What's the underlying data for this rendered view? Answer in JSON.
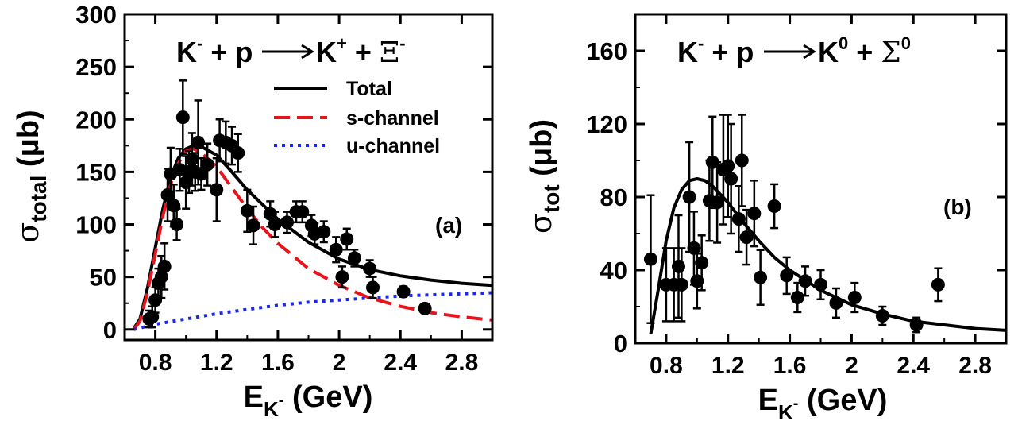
{
  "chart_data": [
    {
      "id": "a",
      "type": "scatter",
      "panel_label": "(a)",
      "reaction": {
        "l1": "K",
        "s1": "-",
        "l2": " + p ",
        "l3": "K",
        "s3": "+",
        "l4": " + ",
        "l5": "Ξ",
        "s5": "-"
      },
      "ylabel": {
        "main": "σ",
        "sub": "total",
        "unit": " (μb)"
      },
      "xlabel": {
        "main": "E",
        "sub": "K",
        "subsup": "-",
        "unit": " (GeV)"
      },
      "xlim": [
        0.6,
        3.0
      ],
      "ylim": [
        -10,
        300
      ],
      "xticks": [
        0.8,
        1.2,
        1.6,
        2.0,
        2.4,
        2.8
      ],
      "xtick_labels": [
        "0.8",
        "1.2",
        "1.6",
        "2",
        "2.4",
        "2.8"
      ],
      "yticks": [
        0,
        50,
        100,
        150,
        200,
        250,
        300
      ],
      "ytick_labels": [
        "0",
        "50",
        "100",
        "150",
        "200",
        "250",
        "300"
      ],
      "legend": {
        "position": "top-right",
        "items": [
          {
            "label": "Total",
            "color": "#000000",
            "dash": "solid"
          },
          {
            "label": "s-channel",
            "color": "#e8141c",
            "dash": "dashed"
          },
          {
            "label": "u-channel",
            "color": "#1c28e8",
            "dash": "dotted"
          }
        ]
      },
      "points": [
        {
          "x": 0.76,
          "y": 10,
          "err": 8
        },
        {
          "x": 0.78,
          "y": 12,
          "err": 10
        },
        {
          "x": 0.8,
          "y": 28,
          "err": 12
        },
        {
          "x": 0.82,
          "y": 44,
          "err": 14
        },
        {
          "x": 0.84,
          "y": 50,
          "err": 20
        },
        {
          "x": 0.86,
          "y": 60,
          "err": 22
        },
        {
          "x": 0.88,
          "y": 128,
          "err": 25
        },
        {
          "x": 0.9,
          "y": 148,
          "err": 25
        },
        {
          "x": 0.92,
          "y": 118,
          "err": 20
        },
        {
          "x": 0.94,
          "y": 100,
          "err": 15
        },
        {
          "x": 0.96,
          "y": 152,
          "err": 20
        },
        {
          "x": 0.98,
          "y": 202,
          "err": 35
        },
        {
          "x": 1.0,
          "y": 140,
          "err": 25
        },
        {
          "x": 1.02,
          "y": 150,
          "err": 20
        },
        {
          "x": 1.04,
          "y": 162,
          "err": 25
        },
        {
          "x": 1.06,
          "y": 150,
          "err": 18
        },
        {
          "x": 1.08,
          "y": 178,
          "err": 40
        },
        {
          "x": 1.1,
          "y": 148,
          "err": 15
        },
        {
          "x": 1.14,
          "y": 157,
          "err": 20
        },
        {
          "x": 1.2,
          "y": 133,
          "err": 30
        },
        {
          "x": 1.22,
          "y": 180,
          "err": 20
        },
        {
          "x": 1.26,
          "y": 178,
          "err": 20
        },
        {
          "x": 1.3,
          "y": 175,
          "err": 18
        },
        {
          "x": 1.34,
          "y": 168,
          "err": 18
        },
        {
          "x": 1.4,
          "y": 113,
          "err": 20
        },
        {
          "x": 1.44,
          "y": 99,
          "err": 18
        },
        {
          "x": 1.55,
          "y": 110,
          "err": 12
        },
        {
          "x": 1.58,
          "y": 100,
          "err": 12
        },
        {
          "x": 1.66,
          "y": 102,
          "err": 10
        },
        {
          "x": 1.72,
          "y": 112,
          "err": 10
        },
        {
          "x": 1.76,
          "y": 112,
          "err": 10
        },
        {
          "x": 1.82,
          "y": 99,
          "err": 10
        },
        {
          "x": 1.84,
          "y": 91,
          "err": 10
        },
        {
          "x": 1.9,
          "y": 93,
          "err": 10
        },
        {
          "x": 1.98,
          "y": 76,
          "err": 12
        },
        {
          "x": 2.02,
          "y": 50,
          "err": 10
        },
        {
          "x": 2.05,
          "y": 86,
          "err": 10
        },
        {
          "x": 2.1,
          "y": 68,
          "err": 8
        },
        {
          "x": 2.2,
          "y": 58,
          "err": 8
        },
        {
          "x": 2.22,
          "y": 40,
          "err": 10
        },
        {
          "x": 2.42,
          "y": 36,
          "err": 5
        },
        {
          "x": 2.56,
          "y": 20,
          "err": 4
        }
      ],
      "series": [
        {
          "name": "Total",
          "color": "#000000",
          "dash": "solid",
          "x": [
            0.66,
            0.7,
            0.75,
            0.8,
            0.85,
            0.9,
            0.95,
            1.0,
            1.05,
            1.1,
            1.2,
            1.3,
            1.4,
            1.5,
            1.6,
            1.8,
            2.0,
            2.2,
            2.4,
            2.6,
            2.8,
            3.0
          ],
          "y": [
            1,
            10,
            40,
            78,
            115,
            145,
            163,
            172,
            175,
            174,
            166,
            150,
            133,
            119,
            105,
            83,
            67,
            57,
            51,
            47,
            44,
            42
          ]
        },
        {
          "name": "s-channel",
          "color": "#e8141c",
          "dash": "dashed",
          "x": [
            0.66,
            0.7,
            0.75,
            0.8,
            0.85,
            0.9,
            0.95,
            1.0,
            1.05,
            1.1,
            1.2,
            1.3,
            1.4,
            1.5,
            1.6,
            1.8,
            2.0,
            2.2,
            2.4,
            2.6,
            2.8,
            3.0
          ],
          "y": [
            0,
            8,
            36,
            72,
            108,
            138,
            158,
            170,
            172,
            168,
            155,
            135,
            115,
            97,
            82,
            58,
            42,
            30,
            22,
            16,
            12,
            9
          ]
        },
        {
          "name": "u-channel",
          "color": "#1c28e8",
          "dash": "dotted",
          "x": [
            0.66,
            0.8,
            1.0,
            1.2,
            1.4,
            1.6,
            1.8,
            2.0,
            2.2,
            2.4,
            2.6,
            2.8,
            3.0
          ],
          "y": [
            0,
            5,
            10,
            15,
            19,
            23,
            26,
            28,
            30,
            32,
            33,
            34,
            35
          ]
        }
      ]
    },
    {
      "id": "b",
      "type": "scatter",
      "panel_label": "(b)",
      "reaction": {
        "l1": "K",
        "s1": "-",
        "l2": " + p ",
        "l3": "K",
        "s3": "0",
        "l4": " + ",
        "l5": "Σ",
        "s5": "0"
      },
      "ylabel": {
        "main": "σ",
        "sub": "tot",
        "unit": " (μb)"
      },
      "xlabel": {
        "main": "E",
        "sub": "K",
        "subsup": "-",
        "unit": " (GeV)"
      },
      "xlim": [
        0.6,
        3.0
      ],
      "ylim": [
        0,
        180
      ],
      "xticks": [
        0.8,
        1.2,
        1.6,
        2.0,
        2.4,
        2.8
      ],
      "xtick_labels": [
        "0.8",
        "1.2",
        "1.6",
        "2",
        "2.4",
        "2.8"
      ],
      "yticks": [
        0,
        40,
        80,
        120,
        160
      ],
      "ytick_labels": [
        "0",
        "40",
        "80",
        "120",
        "160"
      ],
      "points": [
        {
          "x": 0.7,
          "y": 46,
          "err": 35
        },
        {
          "x": 0.8,
          "y": 32,
          "err": 20
        },
        {
          "x": 0.85,
          "y": 32,
          "err": 20
        },
        {
          "x": 0.88,
          "y": 42,
          "err": 28
        },
        {
          "x": 0.9,
          "y": 32,
          "err": 20
        },
        {
          "x": 0.95,
          "y": 80,
          "err": 30
        },
        {
          "x": 0.98,
          "y": 52,
          "err": 20
        },
        {
          "x": 1.0,
          "y": 34,
          "err": 15
        },
        {
          "x": 1.03,
          "y": 44,
          "err": 15
        },
        {
          "x": 1.08,
          "y": 78,
          "err": 22
        },
        {
          "x": 1.1,
          "y": 99,
          "err": 25
        },
        {
          "x": 1.13,
          "y": 77,
          "err": 22
        },
        {
          "x": 1.17,
          "y": 95,
          "err": 30
        },
        {
          "x": 1.2,
          "y": 97,
          "err": 28
        },
        {
          "x": 1.22,
          "y": 90,
          "err": 30
        },
        {
          "x": 1.27,
          "y": 68,
          "err": 18
        },
        {
          "x": 1.29,
          "y": 100,
          "err": 25
        },
        {
          "x": 1.32,
          "y": 58,
          "err": 15
        },
        {
          "x": 1.37,
          "y": 71,
          "err": 18
        },
        {
          "x": 1.41,
          "y": 36,
          "err": 15
        },
        {
          "x": 1.5,
          "y": 75,
          "err": 12
        },
        {
          "x": 1.58,
          "y": 37,
          "err": 10
        },
        {
          "x": 1.65,
          "y": 25,
          "err": 8
        },
        {
          "x": 1.7,
          "y": 34,
          "err": 8
        },
        {
          "x": 1.8,
          "y": 32,
          "err": 8
        },
        {
          "x": 1.9,
          "y": 22,
          "err": 8
        },
        {
          "x": 2.02,
          "y": 25,
          "err": 8
        },
        {
          "x": 2.2,
          "y": 15,
          "err": 5
        },
        {
          "x": 2.42,
          "y": 10,
          "err": 4
        },
        {
          "x": 2.56,
          "y": 32,
          "err": 9
        }
      ],
      "series": [
        {
          "name": "",
          "color": "#000000",
          "dash": "solid",
          "x": [
            0.7,
            0.75,
            0.8,
            0.85,
            0.9,
            0.95,
            1.0,
            1.05,
            1.1,
            1.2,
            1.3,
            1.4,
            1.5,
            1.6,
            1.8,
            2.0,
            2.2,
            2.4,
            2.6,
            2.8,
            3.0
          ],
          "y": [
            5,
            30,
            56,
            74,
            84,
            89,
            90,
            89,
            86,
            77,
            66,
            56,
            47,
            40,
            29,
            21,
            16,
            12,
            10,
            8,
            7
          ]
        }
      ]
    }
  ]
}
